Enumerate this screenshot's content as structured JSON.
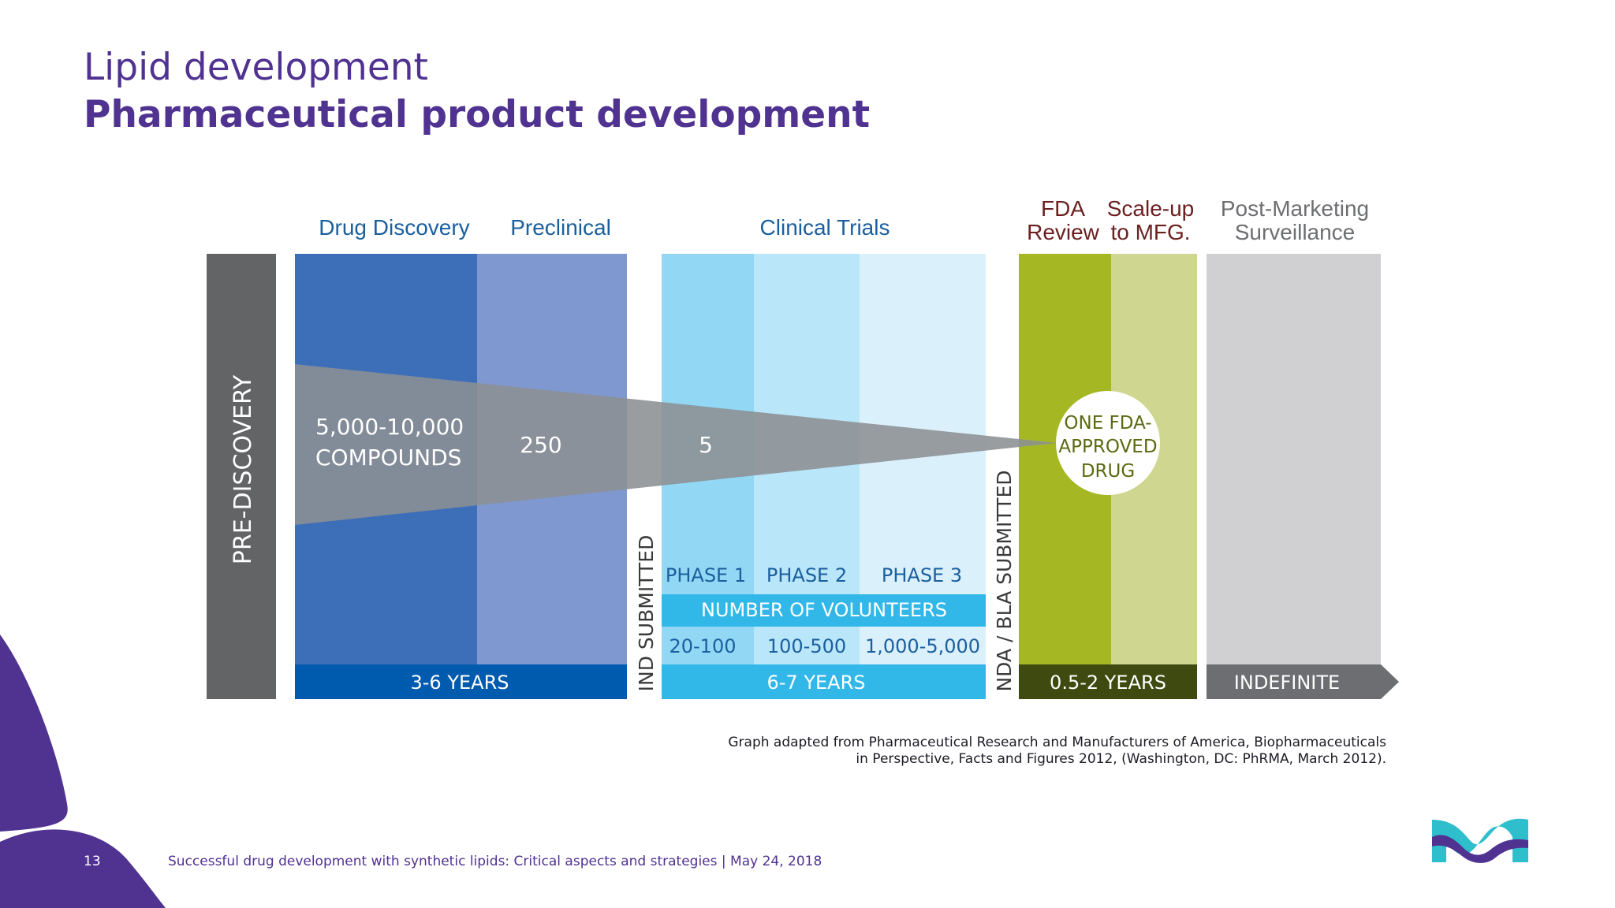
{
  "header": {
    "title": "Lipid development",
    "subtitle": "Pharmaceutical product development"
  },
  "diagram": {
    "stage_labels": {
      "drug_discovery": "Drug Discovery",
      "preclinical": "Preclinical",
      "clinical_trials": "Clinical Trials",
      "fda_review_line1": "FDA",
      "fda_review_line2": "Review",
      "scale_up_line1": "Scale-up",
      "scale_up_line2": "to MFG.",
      "post_marketing_line1": "Post-Marketing",
      "post_marketing_line2": "Surveillance"
    },
    "pre_discovery": "PRE-DISCOVERY",
    "ind_submitted": "IND SUBMITTED",
    "nda_bla_submitted": "NDA / BLA SUBMITTED",
    "compounds_line1": "5,000-10,000",
    "compounds_line2": "COMPOUNDS",
    "preclinical_count": "250",
    "clinical_count": "5",
    "approved_line1": "ONE FDA-",
    "approved_line2": "APPROVED",
    "approved_line3": "DRUG",
    "phases": [
      "PHASE 1",
      "PHASE 2",
      "PHASE 3"
    ],
    "volunteers_label": "NUMBER OF VOLUNTEERS",
    "volunteer_counts": [
      "20-100",
      "100-500",
      "1,000-5,000"
    ],
    "durations": {
      "discovery": "3-6 YEARS",
      "clinical": "6-7 YEARS",
      "review": "0.5-2 YEARS",
      "post": "INDEFINITE"
    },
    "colors": {
      "pre_discovery": "#636466",
      "drug_discovery": "#3d6fb8",
      "preclinical": "#7f98cf",
      "phase1": "#92d8f5",
      "phase2": "#b9e6f8",
      "phase3": "#daf0fb",
      "volunteer_bar": "#32b8e8",
      "fda_review": "#a5b824",
      "scale_up": "#cfd68f",
      "post_marketing": "#d0d0d2",
      "funnel": "#8c8f93",
      "stage_text": "#1a5f9e"
    }
  },
  "source_note": {
    "line1": "Graph adapted from Pharmaceutical Research and Manufacturers of America, Biopharmaceuticals",
    "line2": "in Perspective, Facts and Figures 2012, (Washington, DC: PhRMA, March 2012)."
  },
  "footer": {
    "page_number": "13",
    "text": "Successful drug development with synthetic lipids: Critical aspects and strategies | May 24, 2018"
  }
}
